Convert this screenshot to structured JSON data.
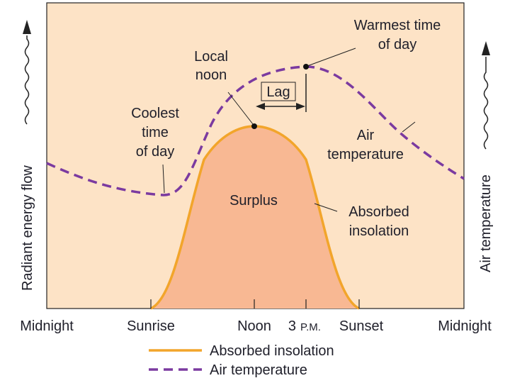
{
  "colors": {
    "panel_bg": "#fde3c6",
    "surplus_fill": "#f8b893",
    "insolation_line": "#f2a52b",
    "air_temp_line": "#7b3aa0",
    "text": "#1f1f2a"
  },
  "axes": {
    "left_label": "Radiant energy flow",
    "right_label": "Air temperature",
    "x_ticks": {
      "midnight_left": "Midnight",
      "sunrise": "Sunrise",
      "noon": "Noon",
      "three_pm_num": "3",
      "three_pm_unit": "P.M.",
      "sunset": "Sunset",
      "midnight_right": "Midnight"
    }
  },
  "annotations": {
    "coolest_1": "Coolest",
    "coolest_2": "time",
    "coolest_3": "of day",
    "local_noon_1": "Local",
    "local_noon_2": "noon",
    "lag": "Lag",
    "warmest_1": "Warmest time",
    "warmest_2": "of day",
    "air_temp_1": "Air",
    "air_temp_2": "temperature",
    "surplus": "Surplus",
    "absorbed_1": "Absorbed",
    "absorbed_2": "insolation"
  },
  "legend": {
    "insolation": "Absorbed insolation",
    "air_temperature": "Air temperature"
  }
}
